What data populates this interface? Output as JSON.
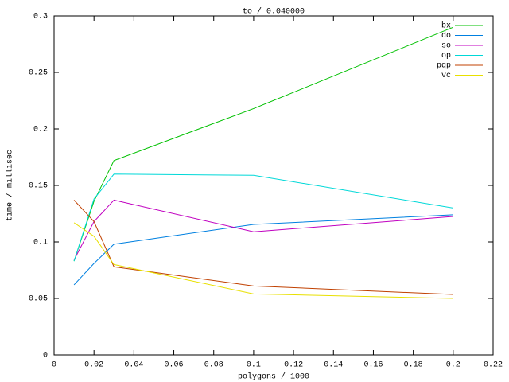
{
  "chart_data": {
    "type": "line",
    "title": "to / 0.040000",
    "x_label": "polygons / 1000",
    "y_label": "time / millisec",
    "x": [
      0.01,
      0.02,
      0.03,
      0.1,
      0.2
    ],
    "series": [
      {
        "name": "bx",
        "color": "#00c000",
        "values": [
          0.083,
          0.136,
          0.172,
          0.218,
          0.29
        ]
      },
      {
        "name": "do",
        "color": "#0080e0",
        "values": [
          0.062,
          0.081,
          0.098,
          0.1155,
          0.124
        ]
      },
      {
        "name": "so",
        "color": "#c000c0",
        "values": [
          0.084,
          0.118,
          0.137,
          0.109,
          0.1225
        ]
      },
      {
        "name": "op",
        "color": "#00d8d8",
        "values": [
          0.083,
          0.138,
          0.16,
          0.159,
          0.13
        ]
      },
      {
        "name": "pqp",
        "color": "#c04000",
        "values": [
          0.137,
          0.118,
          0.078,
          0.061,
          0.0535
        ]
      },
      {
        "name": "vc",
        "color": "#e8e000",
        "values": [
          0.117,
          0.105,
          0.08,
          0.054,
          0.05
        ]
      }
    ],
    "xlim": [
      0,
      0.22
    ],
    "xticks": [
      0,
      0.02,
      0.04,
      0.06,
      0.08,
      0.1,
      0.12,
      0.14,
      0.16,
      0.18,
      0.2,
      0.22
    ],
    "ylim": [
      0,
      0.3
    ],
    "yticks": [
      0,
      0.05,
      0.1,
      0.15,
      0.2,
      0.25,
      0.3
    ],
    "grid": false,
    "legend": "top-right"
  }
}
